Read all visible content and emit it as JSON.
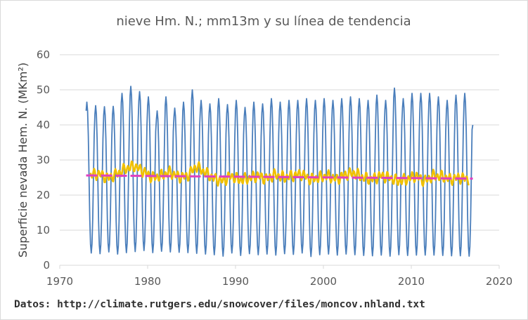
{
  "chart_data": {
    "type": "line",
    "title": "nieve Hm. N.; mm13m y su línea de tendencia",
    "xlabel": "",
    "ylabel": "Superficie nevada Hem. N. (MKm²)",
    "xlim": [
      1970,
      2020
    ],
    "ylim": [
      0,
      60
    ],
    "x_ticks": [
      "1970",
      "1980",
      "1990",
      "2000",
      "2010",
      "2020"
    ],
    "y_ticks": [
      "0",
      "10",
      "20",
      "30",
      "40",
      "50",
      "60"
    ],
    "grid": "horizontal",
    "colors": {
      "monthly": "#4a7ebb",
      "mm13": "#f0c000",
      "trend": "#e040c0"
    },
    "series": [
      {
        "style": "monthly",
        "x_start": 1973.0,
        "x_step": 0.0833,
        "annual_peaks": [
          46.5,
          45.5,
          45.2,
          45.3,
          49.0,
          51.0,
          49.5,
          48.0,
          44.0,
          48.0,
          44.8,
          46.5,
          50.0,
          47.0,
          46.0,
          47.5,
          45.8,
          47.0,
          45.0,
          46.5,
          46.0,
          47.5,
          46.5,
          47.0,
          47.0,
          47.5,
          47.0,
          47.5,
          47.0,
          47.5,
          48.0,
          47.5,
          47.0,
          48.5,
          47.0,
          50.5,
          47.5,
          49.0,
          49.0,
          49.0,
          48.0,
          47.0,
          48.5,
          49.0
        ],
        "annual_troughs": [
          3.5,
          3.3,
          3.8,
          3.2,
          3.6,
          3.9,
          4.2,
          3.6,
          4.0,
          3.8,
          3.7,
          3.6,
          3.4,
          3.2,
          3.0,
          2.6,
          3.5,
          2.8,
          3.3,
          3.0,
          3.2,
          2.9,
          3.3,
          3.1,
          3.5,
          2.5,
          3.0,
          3.2,
          2.9,
          3.2,
          3.0,
          2.8,
          2.7,
          2.9,
          2.6,
          3.0,
          2.8,
          2.9,
          2.9,
          2.9,
          2.8,
          2.7,
          2.7,
          2.6
        ],
        "end_value": 40.0
      },
      {
        "style": "mm13",
        "x_start": 1973.5,
        "x_end": 2016.6,
        "values_by_year": [
          25.8,
          26.0,
          24.8,
          26.0,
          27.5,
          28.3,
          26.8,
          25.0,
          25.5,
          26.5,
          25.2,
          25.3,
          28.2,
          26.5,
          24.8,
          24.0,
          25.5,
          24.3,
          24.8,
          25.5,
          24.6,
          25.8,
          25.0,
          25.5,
          26.0,
          24.5,
          25.0,
          25.5,
          24.5,
          25.8,
          26.3,
          25.0,
          24.5,
          25.5,
          25.0,
          24.0,
          24.5,
          25.5,
          24.0,
          25.5,
          25.3,
          24.5,
          25.0,
          24.5
        ],
        "wiggle": 1.5
      },
      {
        "style": "trend",
        "x": [
          1973.0,
          2017.0
        ],
        "y": [
          25.6,
          24.7
        ]
      }
    ]
  },
  "source_text": "Datos: http://climate.rutgers.edu/snowcover/files/moncov.nhland.txt"
}
